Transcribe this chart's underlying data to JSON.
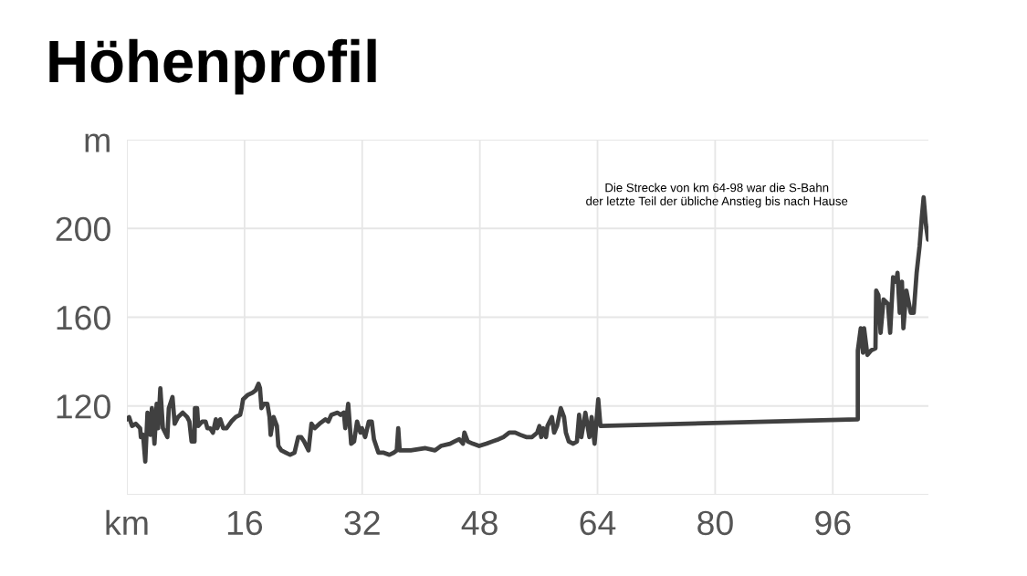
{
  "chart_data": {
    "type": "line",
    "title": "Höhenprofil",
    "x": [
      0,
      0.3,
      0.7,
      1.2,
      1.8,
      1.9,
      2.2,
      2.5,
      2.8,
      3.2,
      3.4,
      3.75,
      4.05,
      4.25,
      4.55,
      4.9,
      5.5,
      5.7,
      6.2,
      6.5,
      6.95,
      7.6,
      8.2,
      8.5,
      8.8,
      9.2,
      9.25,
      9.55,
      9.7,
      10.25,
      10.7,
      10.95,
      11.3,
      11.7,
      12.1,
      12.3,
      12.7,
      13.1,
      13.55,
      14.2,
      14.8,
      15.4,
      15.6,
      15.8,
      16.45,
      17.1,
      17.5,
      17.9,
      18.1,
      18.3,
      18.65,
      19.1,
      19.4,
      19.55,
      19.95,
      20.4,
      20.6,
      21.0,
      21.6,
      22.2,
      22.8,
      23.3,
      23.7,
      24.1,
      24.7,
      25.1,
      25.55,
      26.2,
      27.0,
      27.4,
      27.8,
      28.65,
      29.05,
      29.5,
      29.7,
      30.1,
      30.5,
      30.9,
      31.3,
      31.75,
      31.96,
      32.4,
      32.9,
      33.3,
      33.6,
      34.2,
      34.85,
      35.7,
      36.3,
      36.7,
      36.9,
      37.1,
      38.6,
      40.6,
      41.9,
      42.7,
      43.95,
      44.55,
      45.2,
      45.7,
      45.9,
      46.35,
      47.05,
      47.9,
      48.9,
      49.7,
      50.55,
      51.2,
      51.6,
      52.0,
      52.8,
      53.5,
      54.3,
      55.1,
      55.8,
      56.1,
      56.35,
      56.6,
      57.0,
      57.2,
      57.8,
      58.1,
      58.5,
      59.0,
      59.45,
      59.7,
      60.1,
      60.7,
      61.2,
      61.5,
      61.8,
      62.35,
      62.9,
      63.2,
      63.6,
      64.1,
      64.4,
      99.4,
      99.4,
      99.8,
      100.1,
      100.25,
      100.7,
      101.2,
      101.8,
      101.9,
      102.2,
      102.5,
      102.9,
      103.5,
      103.8,
      104.2,
      104.6,
      104.8,
      105.1,
      105.4,
      105.6,
      106.0,
      106.6,
      107.0,
      107.4,
      107.8,
      108.1,
      108.35,
      108.65,
      108.95
    ],
    "values": [
      114,
      115,
      111,
      112,
      110,
      106,
      107,
      95,
      117,
      107,
      119,
      103,
      121,
      110,
      128,
      110,
      106,
      119,
      124,
      112,
      115,
      117,
      115,
      113,
      104,
      104,
      119,
      119,
      111,
      113,
      113,
      110,
      110,
      108,
      114,
      110,
      114,
      110,
      110,
      113,
      115,
      116,
      119,
      123,
      125,
      126,
      127,
      130,
      128,
      119,
      121,
      121,
      115,
      107,
      115,
      111,
      102,
      100,
      99,
      98,
      99,
      106,
      106,
      104,
      100,
      112,
      110,
      112,
      114,
      113,
      116,
      117,
      116,
      117,
      110,
      121,
      103,
      104,
      113,
      108,
      110,
      106,
      113,
      113,
      105,
      99,
      99,
      98,
      99,
      100,
      110,
      100,
      100,
      101,
      100,
      102,
      103,
      104,
      105,
      103,
      108,
      104,
      103,
      102,
      103,
      104,
      105,
      106,
      107,
      108,
      108,
      107,
      106,
      106,
      108,
      111,
      106,
      110,
      106,
      111,
      115,
      108,
      111,
      119,
      115,
      108,
      104,
      103,
      104,
      116,
      106,
      117,
      106,
      115,
      103,
      123,
      111,
      114,
      145,
      155,
      144,
      155,
      143,
      145,
      146,
      172,
      170,
      153,
      168,
      166,
      153,
      178,
      176,
      180,
      162,
      176,
      155,
      172,
      162,
      162,
      180,
      192,
      205,
      214,
      202,
      195
    ],
    "color": "#404040",
    "line_style": "solid",
    "xlim": [
      0,
      109
    ],
    "xticks": [
      {
        "value": 0,
        "label": "km"
      },
      16,
      32,
      48,
      64,
      80,
      96
    ],
    "ylim": [
      80,
      240
    ],
    "yticks": [
      {
        "value": 80,
        "label": null
      },
      120,
      160,
      200,
      {
        "value": 240,
        "label": "m"
      }
    ],
    "grid": true,
    "annotations": [
      "Die Strecke von km 64-98 war die S-Bahn\nder letzte Teil der übliche Anstieg bis nach Hause"
    ]
  }
}
